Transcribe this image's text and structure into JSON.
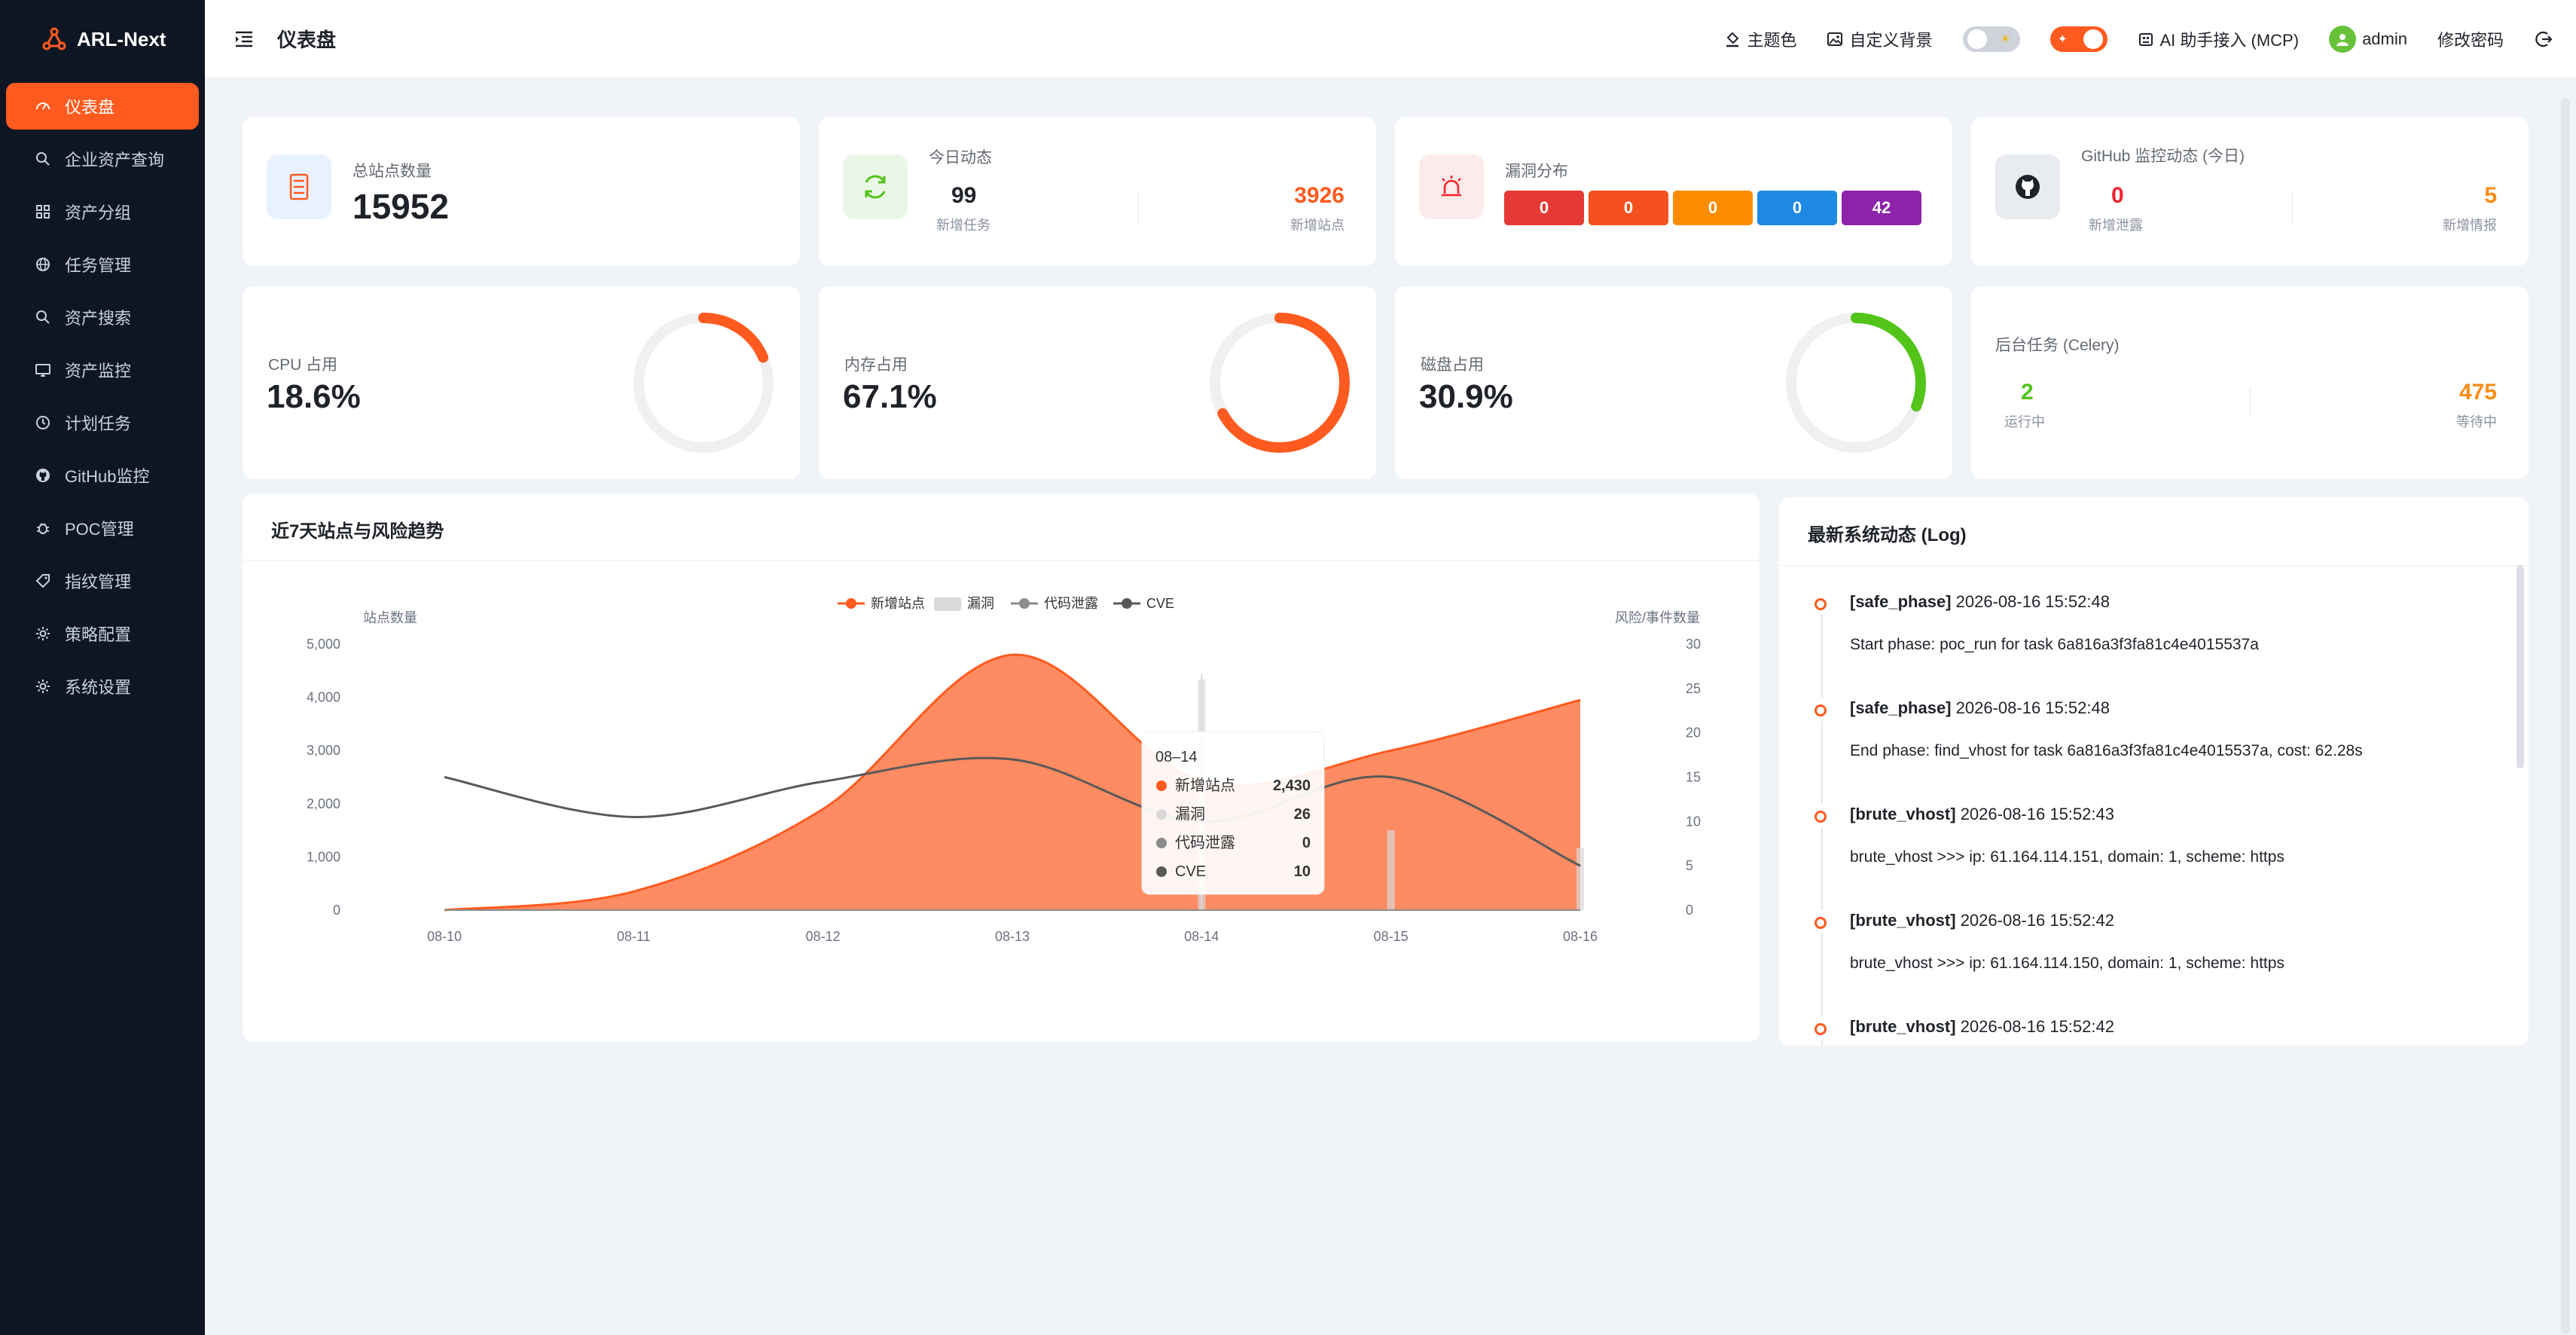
{
  "app": {
    "name": "ARL-Next"
  },
  "sidebar": {
    "items": [
      {
        "label": "仪表盘",
        "icon": "dashboard-icon",
        "active": true
      },
      {
        "label": "企业资产查询",
        "icon": "search-icon"
      },
      {
        "label": "资产分组",
        "icon": "grid-icon"
      },
      {
        "label": "任务管理",
        "icon": "globe-icon"
      },
      {
        "label": "资产搜索",
        "icon": "search-icon"
      },
      {
        "label": "资产监控",
        "icon": "monitor-icon"
      },
      {
        "label": "计划任务",
        "icon": "clock-icon"
      },
      {
        "label": "GitHub监控",
        "icon": "github-icon"
      },
      {
        "label": "POC管理",
        "icon": "bug-icon"
      },
      {
        "label": "指纹管理",
        "icon": "tag-icon"
      },
      {
        "label": "策略配置",
        "icon": "gear-icon"
      },
      {
        "label": "系统设置",
        "icon": "gear-icon"
      }
    ]
  },
  "header": {
    "title": "仪表盘",
    "theme_label": "主题色",
    "bg_label": "自定义背景",
    "ai_label": "AI 助手接入 (MCP)",
    "user": "admin",
    "change_pwd": "修改密码"
  },
  "colors": {
    "accent": "#ff5a1f",
    "sidebar": "#0f1623",
    "green": "#52c41a",
    "orange": "#fa8c16",
    "red": "#f5222d"
  },
  "stats": {
    "total_sites": {
      "label": "总站点数量",
      "value": "15952"
    },
    "today": {
      "label": "今日动态",
      "tasks": "99",
      "tasks_label": "新增任务",
      "sites": "3926",
      "sites_label": "新增站点"
    },
    "vuln": {
      "label": "漏洞分布",
      "values": [
        "0",
        "0",
        "0",
        "0",
        "42"
      ],
      "colors": [
        "#e53935",
        "#f4511e",
        "#fb8c00",
        "#1e88e5",
        "#8e24aa"
      ]
    },
    "github": {
      "label": "GitHub 监控动态 (今日)",
      "leak": "0",
      "leak_label": "新增泄露",
      "intel": "5",
      "intel_label": "新增情报"
    },
    "cpu": {
      "label": "CPU 占用",
      "value": "18.6%",
      "fraction": 0.186,
      "color": "#ff5a1f"
    },
    "mem": {
      "label": "内存占用",
      "value": "67.1%",
      "fraction": 0.671,
      "color": "#ff5a1f"
    },
    "disk": {
      "label": "磁盘占用",
      "value": "30.9%",
      "fraction": 0.309,
      "color": "#52c41a"
    },
    "celery": {
      "label": "后台任务 (Celery)",
      "running": "2",
      "running_label": "运行中",
      "waiting": "475",
      "waiting_label": "等待中"
    }
  },
  "chart": {
    "title": "近7天站点与风险趋势"
  },
  "chart_data": {
    "type": "line",
    "x": [
      "08-10",
      "08-11",
      "08-12",
      "08-13",
      "08-14",
      "08-15",
      "08-16"
    ],
    "ylabel": "站点数量",
    "y2label": "风险/事件数量",
    "ylim": [
      0,
      5000
    ],
    "y2lim": [
      0,
      30
    ],
    "yticks": [
      "5,000",
      "4,000",
      "3,000",
      "2,000",
      "1,000",
      "0"
    ],
    "y2ticks": [
      "30",
      "25",
      "20",
      "15",
      "10",
      "5",
      "0"
    ],
    "legend_position": "top-center",
    "series": [
      {
        "name": "新增站点",
        "type": "area",
        "axis": "left",
        "color": "#ff5a1f",
        "values": [
          0,
          350,
          1900,
          4800,
          2430,
          3000,
          3950
        ]
      },
      {
        "name": "漏洞",
        "type": "bar",
        "axis": "right",
        "color": "#d9d9d9",
        "values": [
          0,
          0,
          0,
          0,
          26,
          9,
          7
        ]
      },
      {
        "name": "代码泄露",
        "type": "line",
        "axis": "right",
        "color": "#8c8c8c",
        "values": [
          0,
          0,
          0,
          0,
          0,
          0,
          0
        ]
      },
      {
        "name": "CVE",
        "type": "line",
        "axis": "right",
        "color": "#595959",
        "values": [
          15,
          10.5,
          14.5,
          17,
          10,
          15,
          5
        ]
      }
    ],
    "tooltip": {
      "title": "08–14",
      "rows": [
        {
          "name": "新增站点",
          "value": "2,430"
        },
        {
          "name": "漏洞",
          "value": "26"
        },
        {
          "name": "代码泄露",
          "value": "0"
        },
        {
          "name": "CVE",
          "value": "10"
        }
      ]
    }
  },
  "log": {
    "title": "最新系统动态 (Log)",
    "entries": [
      {
        "tag": "[safe_phase]",
        "time": "2026-08-16 15:52:48",
        "msg": "Start phase: poc_run for task 6a816a3f3fa81c4e4015537a"
      },
      {
        "tag": "[safe_phase]",
        "time": "2026-08-16 15:52:48",
        "msg": "End phase: find_vhost for task 6a816a3f3fa81c4e4015537a, cost: 62.28s"
      },
      {
        "tag": "[brute_vhost]",
        "time": "2026-08-16 15:52:43",
        "msg": "brute_vhost >>> ip: 61.164.114.151, domain: 1, scheme: https"
      },
      {
        "tag": "[brute_vhost]",
        "time": "2026-08-16 15:52:42",
        "msg": "brute_vhost >>> ip: 61.164.114.150, domain: 1, scheme: https"
      },
      {
        "tag": "[brute_vhost]",
        "time": "2026-08-16 15:52:42",
        "msg": ""
      }
    ]
  }
}
